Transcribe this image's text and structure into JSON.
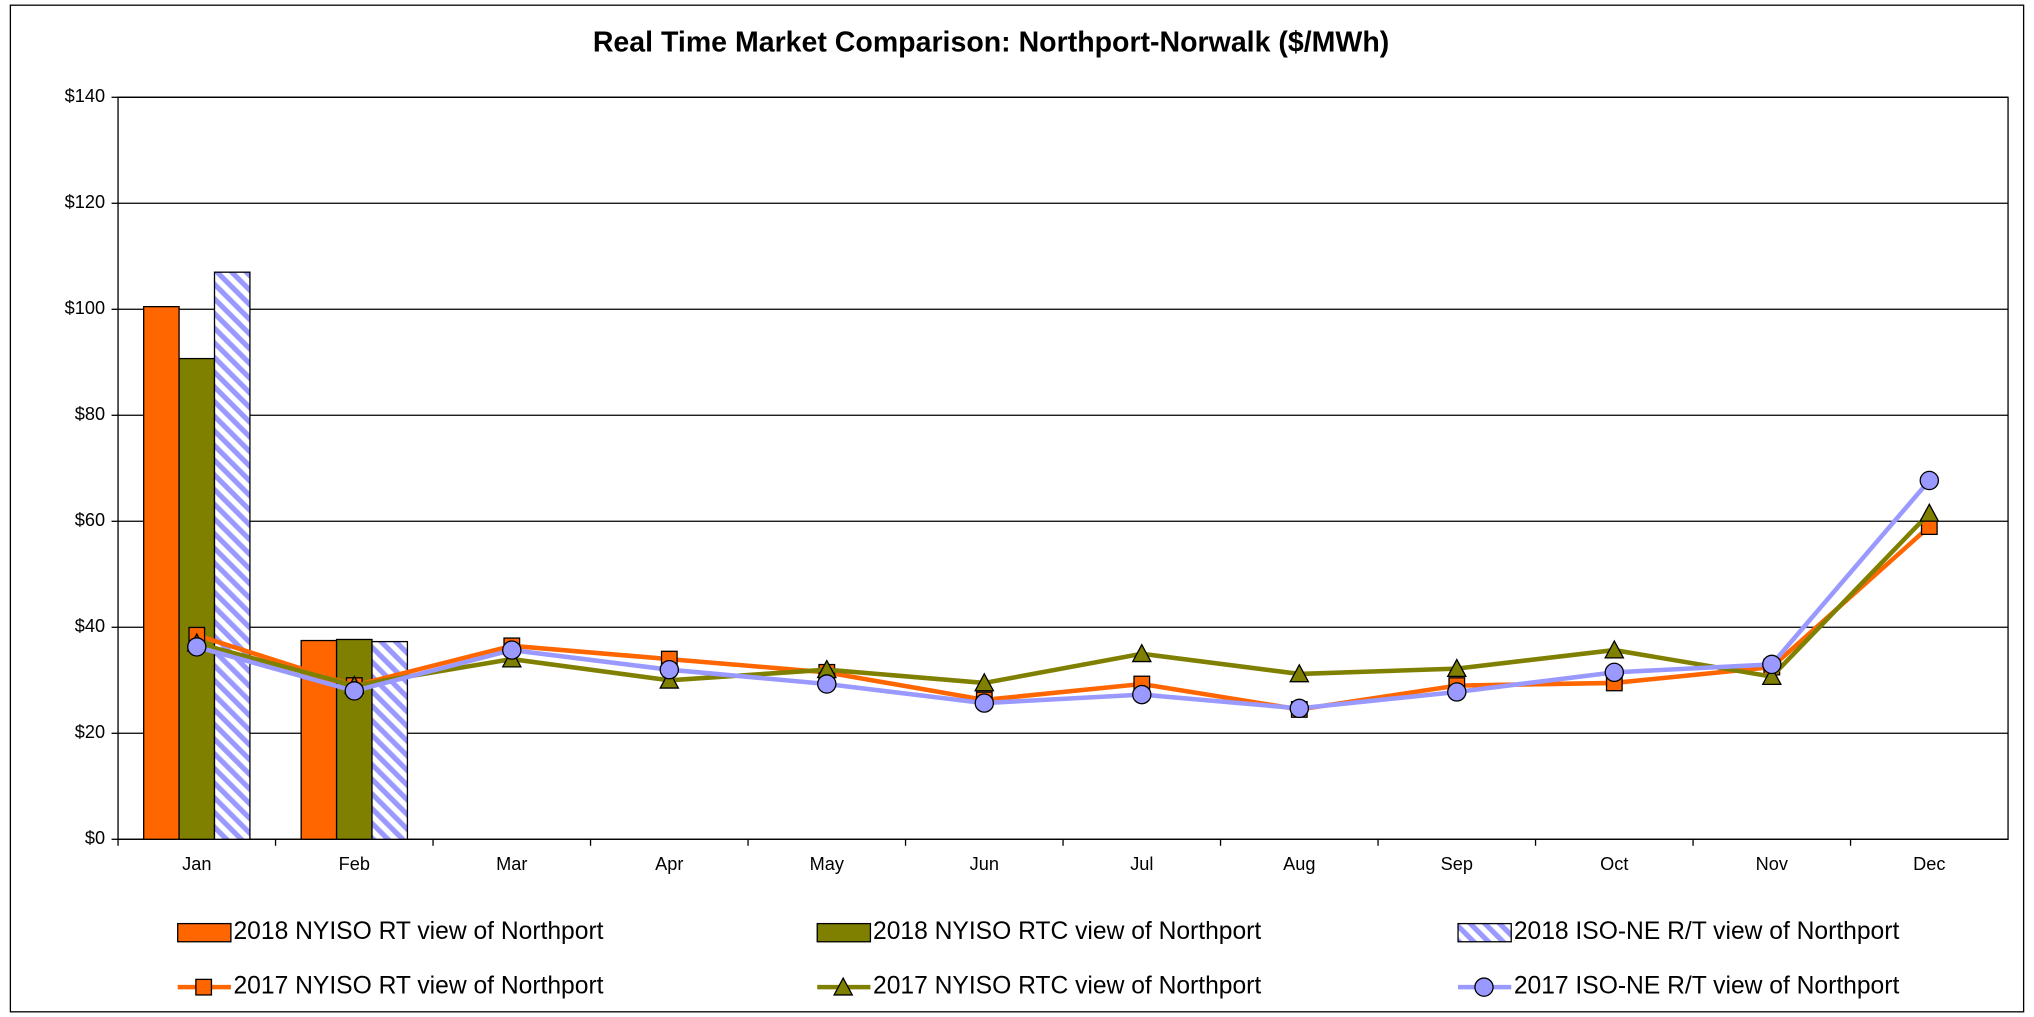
{
  "chart_data": {
    "type": "bar",
    "title": "Real Time Market Comparison: Northport-Norwalk ($/MWh)",
    "categories": [
      "Jan",
      "Feb",
      "Mar",
      "Apr",
      "May",
      "Jun",
      "Jul",
      "Aug",
      "Sep",
      "Oct",
      "Nov",
      "Dec"
    ],
    "ylim": [
      0,
      140
    ],
    "yticks": [
      {
        "value": 0,
        "label": "$0"
      },
      {
        "value": 20,
        "label": "$20"
      },
      {
        "value": 40,
        "label": "$40"
      },
      {
        "value": 60,
        "label": "$60"
      },
      {
        "value": 80,
        "label": "$80"
      },
      {
        "value": 100,
        "label": "$100"
      },
      {
        "value": 120,
        "label": "$120"
      },
      {
        "value": 140,
        "label": "$140"
      }
    ],
    "grid": true,
    "series": [
      {
        "name": "2018 NYISO RT view of Northport",
        "kind": "bar",
        "color": "#ff6600",
        "values": [
          100.5,
          37.5,
          null,
          null,
          null,
          null,
          null,
          null,
          null,
          null,
          null,
          null
        ]
      },
      {
        "name": "2018 NYISO RTC view of Northport",
        "kind": "bar",
        "color": "#808000",
        "values": [
          90.7,
          37.7,
          null,
          null,
          null,
          null,
          null,
          null,
          null,
          null,
          null,
          null
        ]
      },
      {
        "name": "2018 ISO-NE R/T view of Northport",
        "kind": "bar",
        "color": "#9999ff",
        "hatch": true,
        "values": [
          107,
          37.3,
          null,
          null,
          null,
          null,
          null,
          null,
          null,
          null,
          null,
          null
        ]
      },
      {
        "name": "2017 NYISO RT view of Northport",
        "kind": "line",
        "marker": "square",
        "color": "#ff6600",
        "values": [
          38.5,
          29,
          36.5,
          34,
          31.5,
          26.3,
          29.3,
          24.5,
          29,
          29.5,
          32.5,
          59
        ]
      },
      {
        "name": "2017 NYISO RTC view of Northport",
        "kind": "line",
        "marker": "triangle",
        "color": "#808000",
        "values": [
          37,
          29,
          34,
          30,
          32,
          29.5,
          35,
          31.2,
          32.2,
          35.7,
          30.7,
          61.5
        ]
      },
      {
        "name": "2017 ISO-NE R/T view of Northport",
        "kind": "line",
        "marker": "circle",
        "color": "#9999ff",
        "values": [
          36.3,
          28,
          35.7,
          32,
          29.3,
          25.7,
          27.3,
          24.7,
          27.8,
          31.5,
          33,
          67.7
        ]
      }
    ]
  }
}
